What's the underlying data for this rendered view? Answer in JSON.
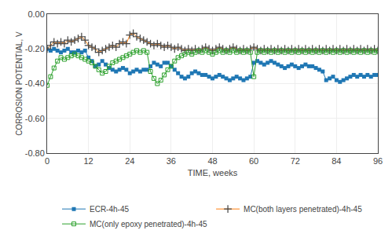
{
  "chart_data": {
    "type": "line",
    "xlabel": "TIME, weeks",
    "ylabel": "CORROSION POTENTIAL, V",
    "x": [
      0,
      1,
      2,
      3,
      4,
      5,
      6,
      7,
      8,
      9,
      10,
      11,
      12,
      13,
      14,
      15,
      16,
      17,
      18,
      19,
      20,
      21,
      22,
      23,
      24,
      25,
      26,
      27,
      28,
      29,
      30,
      31,
      32,
      33,
      34,
      35,
      36,
      37,
      38,
      39,
      40,
      41,
      42,
      43,
      44,
      45,
      46,
      47,
      48,
      49,
      50,
      51,
      52,
      53,
      54,
      55,
      56,
      57,
      58,
      59,
      60,
      61,
      62,
      63,
      64,
      65,
      66,
      67,
      68,
      69,
      70,
      71,
      72,
      73,
      74,
      75,
      76,
      77,
      78,
      79,
      80,
      81,
      82,
      83,
      84,
      85,
      86,
      87,
      88,
      89,
      90,
      91,
      92,
      93,
      94,
      95,
      96
    ],
    "series": [
      {
        "name": "ECR-4h-45",
        "marker": "square",
        "values": [
          -0.2,
          -0.21,
          -0.2,
          -0.21,
          -0.22,
          -0.21,
          -0.2,
          -0.22,
          -0.22,
          -0.21,
          -0.22,
          -0.21,
          -0.25,
          -0.27,
          -0.3,
          -0.29,
          -0.27,
          -0.29,
          -0.31,
          -0.32,
          -0.33,
          -0.32,
          -0.31,
          -0.32,
          -0.34,
          -0.33,
          -0.32,
          -0.33,
          -0.32,
          -0.32,
          -0.3,
          -0.28,
          -0.29,
          -0.3,
          -0.28,
          -0.28,
          -0.3,
          -0.32,
          -0.34,
          -0.36,
          -0.37,
          -0.36,
          -0.34,
          -0.33,
          -0.34,
          -0.35,
          -0.35,
          -0.36,
          -0.37,
          -0.36,
          -0.35,
          -0.36,
          -0.37,
          -0.38,
          -0.37,
          -0.36,
          -0.37,
          -0.38,
          -0.37,
          -0.36,
          -0.28,
          -0.27,
          -0.28,
          -0.29,
          -0.28,
          -0.27,
          -0.28,
          -0.29,
          -0.3,
          -0.31,
          -0.3,
          -0.29,
          -0.3,
          -0.31,
          -0.3,
          -0.29,
          -0.3,
          -0.3,
          -0.31,
          -0.32,
          -0.33,
          -0.38,
          -0.37,
          -0.36,
          -0.38,
          -0.39,
          -0.38,
          -0.37,
          -0.36,
          -0.35,
          -0.36,
          -0.35,
          -0.36,
          -0.35,
          -0.36,
          -0.35,
          -0.35
        ]
      },
      {
        "name": "MC(both layers penetrated)-4h-45",
        "marker": "plus",
        "values": [
          -0.2,
          -0.18,
          -0.16,
          -0.17,
          -0.16,
          -0.17,
          -0.15,
          -0.16,
          -0.15,
          -0.14,
          -0.13,
          -0.15,
          -0.18,
          -0.19,
          -0.2,
          -0.22,
          -0.21,
          -0.2,
          -0.19,
          -0.18,
          -0.19,
          -0.17,
          -0.16,
          -0.17,
          -0.12,
          -0.11,
          -0.13,
          -0.14,
          -0.15,
          -0.16,
          -0.17,
          -0.18,
          -0.17,
          -0.18,
          -0.19,
          -0.18,
          -0.19,
          -0.2,
          -0.19,
          -0.2,
          -0.21,
          -0.2,
          -0.21,
          -0.2,
          -0.21,
          -0.2,
          -0.19,
          -0.2,
          -0.21,
          -0.2,
          -0.19,
          -0.2,
          -0.21,
          -0.2,
          -0.19,
          -0.2,
          -0.21,
          -0.2,
          -0.21,
          -0.2,
          -0.19,
          -0.2,
          -0.21,
          -0.2,
          -0.21,
          -0.2,
          -0.21,
          -0.2,
          -0.21,
          -0.2,
          -0.21,
          -0.2,
          -0.21,
          -0.2,
          -0.21,
          -0.2,
          -0.21,
          -0.2,
          -0.21,
          -0.2,
          -0.21,
          -0.2,
          -0.21,
          -0.2,
          -0.21,
          -0.2,
          -0.21,
          -0.2,
          -0.21,
          -0.2,
          -0.21,
          -0.2,
          -0.21,
          -0.2,
          -0.21,
          -0.2,
          -0.21
        ]
      },
      {
        "name": "MC(only epoxy penetrated)-4h-45",
        "marker": "square-open",
        "values": [
          -0.41,
          -0.36,
          -0.31,
          -0.27,
          -0.25,
          -0.26,
          -0.25,
          -0.24,
          -0.23,
          -0.24,
          -0.25,
          -0.26,
          -0.27,
          -0.28,
          -0.3,
          -0.32,
          -0.34,
          -0.33,
          -0.3,
          -0.28,
          -0.27,
          -0.26,
          -0.25,
          -0.24,
          -0.23,
          -0.22,
          -0.21,
          -0.22,
          -0.21,
          -0.22,
          -0.33,
          -0.37,
          -0.4,
          -0.38,
          -0.35,
          -0.32,
          -0.3,
          -0.27,
          -0.25,
          -0.24,
          -0.23,
          -0.22,
          -0.23,
          -0.22,
          -0.21,
          -0.22,
          -0.21,
          -0.22,
          -0.23,
          -0.22,
          -0.21,
          -0.22,
          -0.21,
          -0.22,
          -0.21,
          -0.22,
          -0.21,
          -0.22,
          -0.21,
          -0.22,
          -0.36,
          -0.22,
          -0.21,
          -0.22,
          -0.21,
          -0.22,
          -0.21,
          -0.22,
          -0.21,
          -0.22,
          -0.21,
          -0.22,
          -0.21,
          -0.22,
          -0.21,
          -0.22,
          -0.21,
          -0.22,
          -0.21,
          -0.22,
          -0.21,
          -0.22,
          -0.21,
          -0.22,
          -0.21,
          -0.22,
          -0.21,
          -0.22,
          -0.21,
          -0.22,
          -0.21,
          -0.22,
          -0.21,
          -0.22,
          -0.21,
          -0.22,
          -0.21
        ]
      }
    ],
    "xlim": [
      0,
      96
    ],
    "ylim": [
      -0.8,
      0.0
    ],
    "xticks": [
      0,
      12,
      24,
      36,
      48,
      60,
      72,
      84,
      96
    ],
    "yticks": [
      {
        "value": 0.0,
        "label": "0.00"
      },
      {
        "value": -0.2,
        "label": "-0.20"
      },
      {
        "value": -0.4,
        "label": "-0.40"
      },
      {
        "value": -0.6,
        "label": "-0.60"
      },
      {
        "value": -0.8,
        "label": "-0.80"
      }
    ],
    "grid": true,
    "legend": "bottom"
  }
}
